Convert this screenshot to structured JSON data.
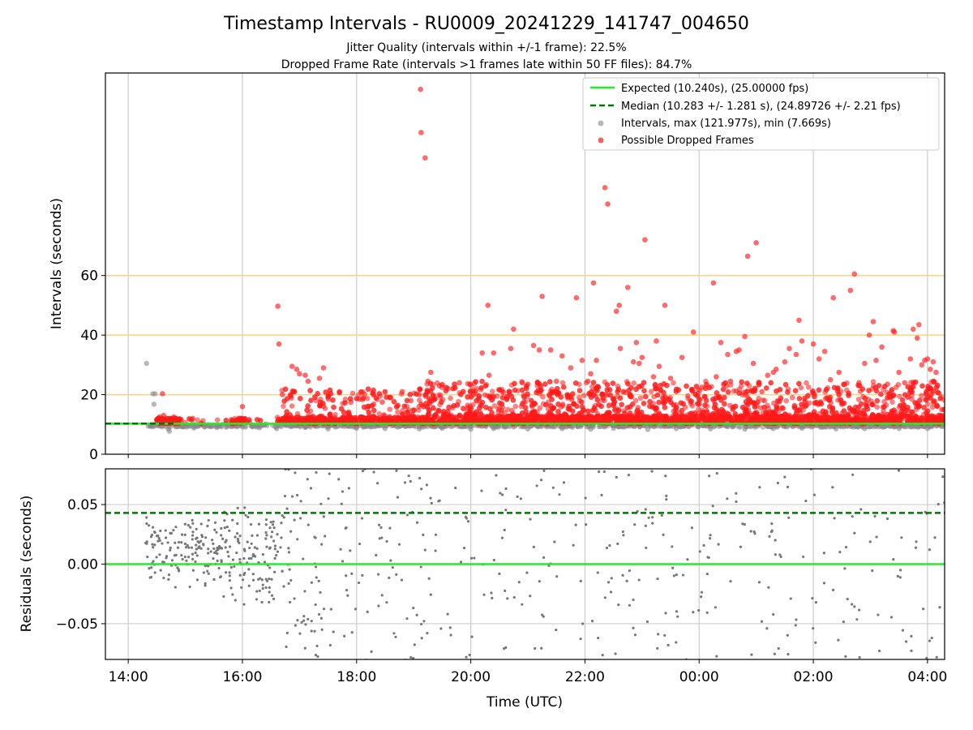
{
  "title": "Timestamp Intervals - RU0009_20241229_141747_004650",
  "subtitle_1": "Jitter Quality (intervals within +/-1 frame): 22.5%",
  "subtitle_2": "Dropped Frame Rate (intervals >1 frames late within 50 FF files): 84.7%",
  "colors": {
    "expected": "#22ee22",
    "median": "#007700",
    "intervals": "#888888",
    "dropped": "#ff1a1a",
    "threshold": "#ffd27f",
    "grid": "#cccccc"
  },
  "legend": {
    "expected": "Expected (10.240s), (25.00000 fps)",
    "median": "Median (10.283 +/- 1.281 s), (24.89726 +/- 2.21 fps)",
    "intervals": "Intervals, max (121.977s), min (7.669s)",
    "dropped": "Possible Dropped Frames"
  },
  "chart_data": [
    {
      "type": "scatter",
      "panel": "intervals",
      "xlabel": "",
      "ylabel": "Intervals (seconds)",
      "x_unit": "hours since 14:00 UTC",
      "xlim": [
        -0.4,
        14.3
      ],
      "ylim": [
        0,
        128
      ],
      "yticks": [
        0,
        20,
        40,
        60
      ],
      "threshold_lines": [
        20,
        40,
        60
      ],
      "expected_line": 10.24,
      "median_line": 10.283,
      "grid": "vertical",
      "legend_position": "top-right",
      "series": [
        {
          "name": "Intervals, max (121.977s), min (7.669s)",
          "points": [
            [
              0.32,
              30.5
            ],
            [
              0.43,
              20.3
            ],
            [
              0.47,
              20.3
            ],
            [
              0.45,
              16.8
            ],
            [
              0.7,
              8.5
            ],
            [
              0.72,
              7.7
            ],
            [
              0.95,
              9.2
            ],
            [
              1.15,
              8.8
            ],
            [
              1.55,
              9.0
            ],
            [
              1.8,
              9.3
            ],
            [
              2.3,
              8.9
            ],
            [
              2.6,
              8.6
            ],
            [
              3.1,
              9.0
            ],
            [
              3.5,
              8.5
            ],
            [
              4.0,
              8.7
            ],
            [
              4.5,
              8.6
            ],
            [
              5.1,
              8.5
            ],
            [
              5.5,
              8.7
            ],
            [
              6.0,
              8.4
            ],
            [
              6.4,
              8.6
            ],
            [
              7.0,
              8.5
            ],
            [
              7.6,
              8.6
            ],
            [
              8.1,
              8.4
            ],
            [
              8.5,
              8.7
            ],
            [
              9.1,
              8.3
            ],
            [
              9.6,
              8.6
            ],
            [
              10.2,
              8.5
            ],
            [
              10.8,
              8.4
            ],
            [
              11.3,
              8.6
            ],
            [
              11.8,
              8.7
            ],
            [
              12.4,
              8.5
            ],
            [
              12.9,
              8.6
            ],
            [
              13.5,
              8.6
            ],
            [
              14.0,
              8.6
            ]
          ]
        },
        {
          "name": "Possible Dropped Frames",
          "points": [
            [
              0.55,
              12.5
            ],
            [
              0.58,
              11.0
            ],
            [
              0.6,
              20.3
            ],
            [
              0.62,
              13.0
            ],
            [
              0.66,
              10.3
            ],
            [
              0.7,
              11.5
            ],
            [
              0.8,
              12.5
            ],
            [
              0.82,
              10.3
            ],
            [
              1.13,
              12.0
            ],
            [
              1.82,
              11.5
            ],
            [
              1.9,
              10.5
            ],
            [
              2.0,
              16.0
            ],
            [
              2.62,
              49.7
            ],
            [
              2.64,
              37.0
            ],
            [
              2.7,
              20.0
            ],
            [
              2.85,
              19.5
            ],
            [
              2.87,
              29.5
            ],
            [
              2.9,
              21.0
            ],
            [
              2.95,
              28.5
            ],
            [
              3.0,
              27.0
            ],
            [
              3.1,
              26.5
            ],
            [
              3.15,
              24.5
            ],
            [
              3.35,
              25.5
            ],
            [
              3.42,
              29.0
            ],
            [
              3.5,
              19.5
            ],
            [
              3.7,
              21.0
            ],
            [
              3.9,
              17.5
            ],
            [
              4.05,
              18.5
            ],
            [
              4.3,
              16.8
            ],
            [
              4.45,
              17.5
            ],
            [
              4.6,
              19.0
            ],
            [
              4.8,
              21.0
            ],
            [
              4.95,
              18.0
            ],
            [
              5.1,
              20.0
            ],
            [
              5.12,
              122.5
            ],
            [
              5.13,
              108.0
            ],
            [
              5.2,
              99.5
            ],
            [
              5.25,
              24.5
            ],
            [
              5.3,
              27.5
            ],
            [
              5.45,
              23.0
            ],
            [
              5.6,
              22.0
            ],
            [
              5.8,
              24.0
            ],
            [
              6.05,
              20.0
            ],
            [
              6.3,
              50.0
            ],
            [
              6.32,
              26.5
            ],
            [
              6.2,
              34.0
            ],
            [
              6.4,
              34.0
            ],
            [
              6.55,
              21.0
            ],
            [
              6.7,
              35.5
            ],
            [
              6.75,
              42.0
            ],
            [
              6.9,
              24.0
            ],
            [
              7.0,
              23.5
            ],
            [
              7.1,
              36.5
            ],
            [
              7.2,
              35.0
            ],
            [
              7.25,
              53.0
            ],
            [
              7.4,
              35.0
            ],
            [
              7.5,
              24.5
            ],
            [
              7.6,
              33.0
            ],
            [
              7.75,
              29.0
            ],
            [
              7.85,
              52.5
            ],
            [
              7.95,
              31.5
            ],
            [
              8.05,
              24.5
            ],
            [
              8.1,
              27.0
            ],
            [
              8.15,
              57.5
            ],
            [
              8.2,
              31.5
            ],
            [
              8.3,
              20.0
            ],
            [
              8.35,
              89.5
            ],
            [
              8.4,
              84.0
            ],
            [
              8.55,
              48.0
            ],
            [
              8.6,
              50.0
            ],
            [
              8.62,
              35.5
            ],
            [
              8.75,
              56.0
            ],
            [
              8.85,
              31.0
            ],
            [
              8.9,
              37.5
            ],
            [
              8.95,
              30.5
            ],
            [
              9.0,
              32.5
            ],
            [
              9.05,
              72.0
            ],
            [
              9.2,
              26.0
            ],
            [
              9.25,
              38.0
            ],
            [
              9.3,
              29.5
            ],
            [
              9.4,
              50.0
            ],
            [
              9.5,
              25.5
            ],
            [
              9.7,
              32.5
            ],
            [
              9.9,
              41.0
            ],
            [
              10.05,
              22.5
            ],
            [
              10.25,
              57.5
            ],
            [
              10.3,
              26.0
            ],
            [
              10.38,
              37.5
            ],
            [
              10.5,
              33.5
            ],
            [
              10.55,
              24.5
            ],
            [
              10.65,
              34.5
            ],
            [
              10.7,
              35.0
            ],
            [
              10.8,
              39.5
            ],
            [
              10.85,
              66.5
            ],
            [
              10.95,
              30.5
            ],
            [
              11.0,
              71.0
            ],
            [
              11.1,
              21.0
            ],
            [
              11.2,
              26.5
            ],
            [
              11.3,
              27.5
            ],
            [
              11.35,
              28.5
            ],
            [
              11.5,
              31.0
            ],
            [
              11.58,
              35.5
            ],
            [
              11.7,
              33.5
            ],
            [
              11.75,
              45.0
            ],
            [
              11.8,
              38.0
            ],
            [
              11.9,
              19.5
            ],
            [
              12.0,
              37.0
            ],
            [
              12.1,
              32.0
            ],
            [
              12.2,
              34.5
            ],
            [
              12.3,
              25.0
            ],
            [
              12.35,
              52.5
            ],
            [
              12.45,
              27.5
            ],
            [
              12.55,
              23.5
            ],
            [
              12.65,
              55.0
            ],
            [
              12.72,
              60.5
            ],
            [
              12.8,
              24.0
            ],
            [
              12.9,
              30.5
            ],
            [
              12.98,
              40.0
            ],
            [
              13.05,
              44.5
            ],
            [
              13.1,
              31.5
            ],
            [
              13.2,
              36.0
            ],
            [
              13.3,
              23.5
            ],
            [
              13.4,
              41.5
            ],
            [
              13.42,
              41.0
            ],
            [
              13.5,
              27.5
            ],
            [
              13.6,
              24.0
            ],
            [
              13.7,
              32.0
            ],
            [
              13.75,
              42.0
            ],
            [
              13.82,
              39.0
            ],
            [
              13.85,
              43.5
            ],
            [
              13.9,
              30.0
            ],
            [
              13.95,
              31.5
            ],
            [
              14.0,
              32.0
            ],
            [
              14.05,
              28.5
            ],
            [
              14.1,
              31.0
            ],
            [
              14.15,
              27.5
            ],
            [
              14.2,
              20.5
            ],
            [
              14.25,
              15.0
            ]
          ]
        }
      ]
    },
    {
      "type": "scatter",
      "panel": "residuals",
      "xlabel": "Time (UTC)",
      "ylabel": "Residuals (seconds)",
      "x_unit": "hours since 14:00 UTC",
      "xlim": [
        -0.4,
        14.3
      ],
      "ylim": [
        -0.08,
        0.08
      ],
      "xticks": [
        "14:00",
        "16:00",
        "18:00",
        "20:00",
        "22:00",
        "00:00",
        "02:00",
        "04:00"
      ],
      "yticks": [
        "−0.05",
        "0.00",
        "0.05"
      ],
      "ytick_values": [
        -0.05,
        0.0,
        0.05
      ],
      "expected_line": 0.0,
      "median_line": 0.043,
      "grid": "on",
      "series": [
        {
          "name": "",
          "density": [
            [
              0.3,
              1.6,
              0.012,
              0.025
            ],
            [
              1.6,
              2.7,
              0.008,
              0.035
            ],
            [
              2.7,
              4.0,
              0.0,
              0.05
            ],
            [
              4.0,
              5.5,
              0.0,
              0.055
            ],
            [
              5.5,
              14.3,
              0.0,
              0.065
            ]
          ],
          "points_per_hour": [
            110,
            120,
            70,
            45,
            28
          ]
        }
      ]
    }
  ]
}
